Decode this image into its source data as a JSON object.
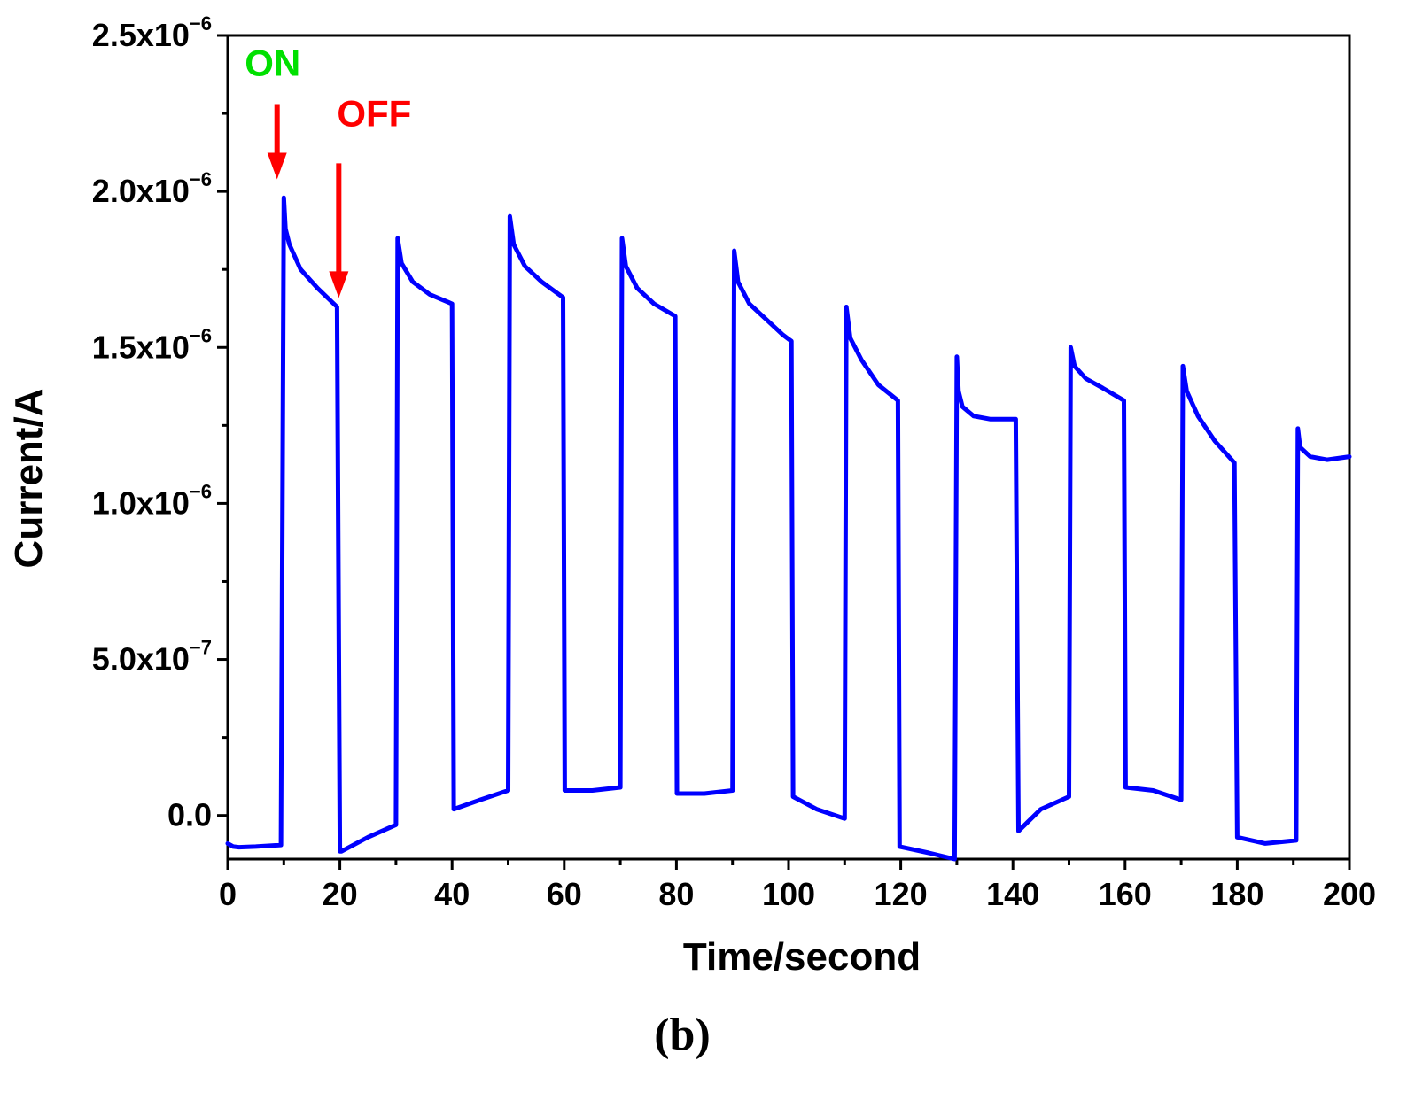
{
  "chart_data": {
    "type": "line",
    "xlabel": "Time/second",
    "ylabel": "Current/A",
    "xlim": [
      0,
      200
    ],
    "ylim": [
      -1.4e-07,
      2.5e-06
    ],
    "x_ticks": [
      0,
      20,
      40,
      60,
      80,
      100,
      120,
      140,
      160,
      180,
      200
    ],
    "x_tick_labels": [
      "0",
      "20",
      "40",
      "60",
      "80",
      "100",
      "120",
      "140",
      "160",
      "180",
      "200"
    ],
    "y_ticks": [
      0,
      5e-07,
      1e-06,
      1.5e-06,
      2e-06,
      2.5e-06
    ],
    "y_tick_labels": [
      {
        "mantissa": "0.0",
        "exponent": ""
      },
      {
        "mantissa": "5.0x10",
        "exponent": "−7"
      },
      {
        "mantissa": "1.0x10",
        "exponent": "−6"
      },
      {
        "mantissa": "1.5x10",
        "exponent": "−6"
      },
      {
        "mantissa": "2.0x10",
        "exponent": "−6"
      },
      {
        "mantissa": "2.5x10",
        "exponent": "−6"
      }
    ],
    "grid": false,
    "line_color": "#0000ff",
    "series": [
      {
        "x": [
          0,
          1,
          2,
          5,
          9.5,
          10,
          10.3,
          11,
          13,
          16,
          19.5,
          20,
          20.3,
          25,
          30,
          30.3,
          31,
          33,
          36,
          40,
          40.3,
          45,
          50,
          50.3,
          51,
          53,
          56,
          59.8,
          60.1,
          65,
          70,
          70.3,
          71,
          73,
          76,
          79.8,
          80.1,
          85,
          90,
          90.3,
          91,
          93,
          96,
          99,
          100.5,
          100.8,
          105,
          110,
          110.3,
          111,
          113,
          116,
          119.5,
          119.8,
          125,
          129.6,
          130,
          130.3,
          131,
          133,
          136,
          140.5,
          141,
          145,
          150,
          150.3,
          151,
          153,
          156,
          159.8,
          160.1,
          165,
          170,
          170.3,
          171,
          173,
          176,
          179.5,
          180,
          185,
          190.5,
          190.8,
          191.2,
          193,
          196,
          200
        ],
        "y": [
          -9e-08,
          -1e-07,
          -1.02e-07,
          -1e-07,
          -9.5e-08,
          1.98e-06,
          1.88e-06,
          1.83e-06,
          1.75e-06,
          1.69e-06,
          1.63e-06,
          -1.15e-07,
          -1.15e-07,
          -7e-08,
          -3e-08,
          1.85e-06,
          1.77e-06,
          1.71e-06,
          1.67e-06,
          1.64e-06,
          2e-08,
          5e-08,
          8e-08,
          1.92e-06,
          1.83e-06,
          1.76e-06,
          1.71e-06,
          1.66e-06,
          8e-08,
          8e-08,
          9e-08,
          1.85e-06,
          1.76e-06,
          1.69e-06,
          1.64e-06,
          1.6e-06,
          7e-08,
          7e-08,
          8e-08,
          1.81e-06,
          1.71e-06,
          1.64e-06,
          1.59e-06,
          1.54e-06,
          1.52e-06,
          6e-08,
          2e-08,
          -1e-08,
          1.63e-06,
          1.53e-06,
          1.46e-06,
          1.38e-06,
          1.33e-06,
          -1e-07,
          -1.2e-07,
          -1.4e-07,
          1.47e-06,
          1.36e-06,
          1.31e-06,
          1.28e-06,
          1.27e-06,
          1.27e-06,
          -5e-08,
          2e-08,
          6e-08,
          1.5e-06,
          1.44e-06,
          1.4e-06,
          1.37e-06,
          1.33e-06,
          9e-08,
          8e-08,
          5e-08,
          1.44e-06,
          1.36e-06,
          1.28e-06,
          1.2e-06,
          1.13e-06,
          -7e-08,
          -9e-08,
          -8e-08,
          1.24e-06,
          1.18e-06,
          1.15e-06,
          1.14e-06,
          1.15e-06
        ]
      }
    ],
    "annotations": [
      {
        "text": "ON",
        "color": "#00e000",
        "arrow_color": "#ff0000",
        "x": 8.8,
        "y_from": 2.28e-06,
        "y_to": 2.05e-06
      },
      {
        "text": "OFF",
        "color": "#ff0000",
        "arrow_color": "#ff0000",
        "x": 19.8,
        "y_from": 2.09e-06,
        "y_to": 1.67e-06
      }
    ]
  },
  "panel_label": "(b)"
}
